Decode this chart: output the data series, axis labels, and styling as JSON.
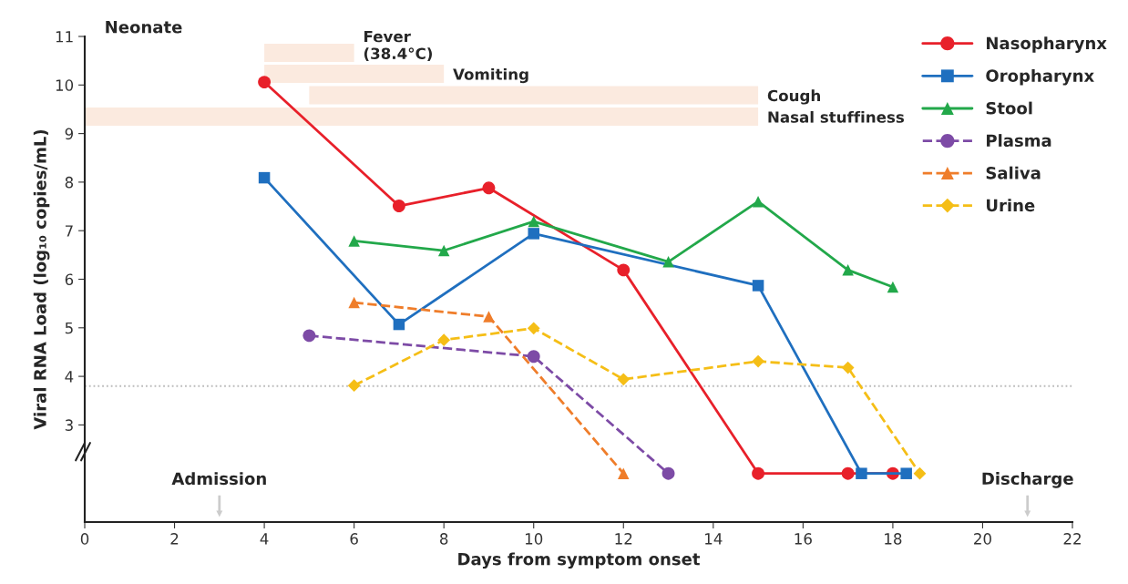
{
  "chart_data": {
    "type": "line",
    "xlabel": "Days from symptom onset",
    "ylabel": "Viral RNA Load (log₁₀ copies/mL)",
    "xlim": [
      0,
      22
    ],
    "xticks": [
      0,
      2,
      4,
      6,
      8,
      10,
      12,
      14,
      16,
      18,
      20,
      22
    ],
    "ylim": [
      1,
      11
    ],
    "yticks": [
      3,
      4,
      5,
      6,
      7,
      8,
      9,
      10,
      11
    ],
    "grid": false,
    "legend": "top right",
    "series": [
      {
        "name": "Nasopharynx",
        "color": "#e8202a",
        "marker": "circle",
        "line_style": "solid",
        "x": [
          4,
          7,
          9,
          12,
          15,
          17,
          18
        ],
        "values": [
          10.06,
          7.51,
          7.88,
          6.19,
          2,
          2,
          2
        ]
      },
      {
        "name": "Oropharynx",
        "color": "#1f6fbf",
        "marker": "square",
        "line_style": "solid",
        "x": [
          4,
          7,
          10,
          15,
          17.3,
          18.3
        ],
        "values": [
          8.09,
          5.07,
          6.94,
          5.87,
          2,
          2
        ]
      },
      {
        "name": "Stool",
        "color": "#22a84a",
        "marker": "triangle",
        "line_style": "solid",
        "x": [
          6,
          8,
          10,
          13,
          15,
          17,
          18
        ],
        "values": [
          6.79,
          6.59,
          7.19,
          6.36,
          7.6,
          6.19,
          5.84
        ]
      },
      {
        "name": "Plasma",
        "color": "#7d4ba6",
        "marker": "circle",
        "line_style": "dashed",
        "x": [
          5,
          10,
          13
        ],
        "values": [
          4.84,
          4.41,
          2
        ]
      },
      {
        "name": "Saliva",
        "color": "#ef7d2a",
        "marker": "triangle",
        "line_style": "dashed",
        "x": [
          6,
          9,
          12
        ],
        "values": [
          5.52,
          5.23,
          2
        ]
      },
      {
        "name": "Urine",
        "color": "#f5be16",
        "marker": "diamond",
        "line_style": "dashed",
        "x": [
          6,
          8,
          10,
          12,
          15,
          17,
          18.6
        ],
        "values": [
          3.81,
          4.75,
          4.99,
          3.94,
          4.31,
          4.18,
          2
        ]
      },
      {
        "name": "Fever\n(38.4°C)",
        "color": "#fbeadf",
        "marker": "none",
        "line_style": "solid",
        "x": [
          4,
          6
        ],
        "values": [
          10.66,
          10.66
        ]
      },
      {
        "name": "Vomiting",
        "color": "#fbeadf",
        "marker": "none",
        "line_style": "solid",
        "x": [
          4,
          8
        ],
        "values": [
          10.23,
          10.23
        ]
      },
      {
        "name": "Cough",
        "color": "#fbeadf",
        "marker": "none",
        "line_style": "solid",
        "x": [
          5,
          15
        ],
        "values": [
          9.79,
          9.79
        ]
      },
      {
        "name": "Nasal stuffiness",
        "color": "#fbeadf",
        "marker": "none",
        "line_style": "solid",
        "x": [
          0,
          15
        ],
        "values": [
          9.35,
          9.35
        ]
      }
    ],
    "ref_lines": [
      {
        "axis": "y",
        "value": 3.8,
        "color": "#bbbbbb",
        "line_style": "dotted"
      }
    ],
    "annotations": [
      "Neonate",
      "Admission",
      "Discharge"
    ]
  }
}
